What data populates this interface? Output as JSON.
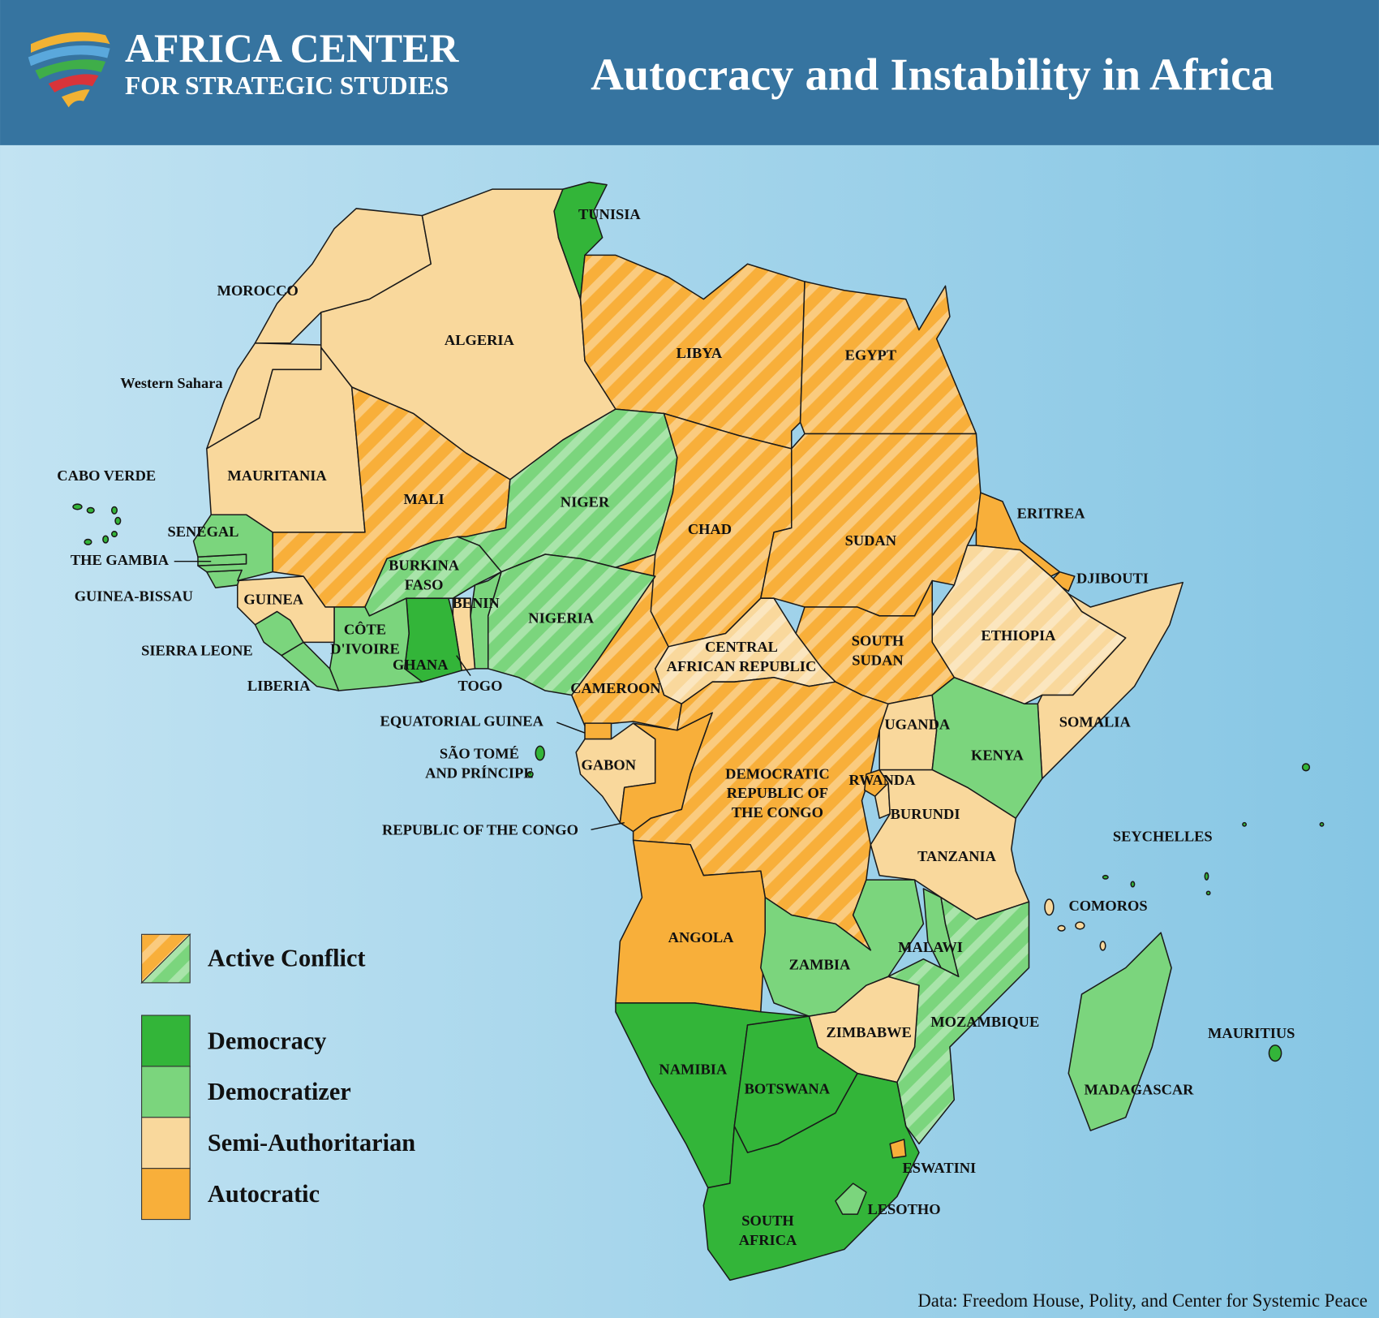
{
  "header": {
    "org_line1": "AFRICA CENTER",
    "org_line2": "FOR STRATEGIC STUDIES",
    "title": "Autocracy and Instability in Africa"
  },
  "legend": {
    "conflict_label": "Active Conflict",
    "items": [
      {
        "label": "Democracy",
        "color": "#33b539"
      },
      {
        "label": "Democratizer",
        "color": "#7bd57d"
      },
      {
        "label": "Semi-Authoritarian",
        "color": "#f9d89c"
      },
      {
        "label": "Autocratic",
        "color": "#f8af3a"
      }
    ]
  },
  "countries": [
    {
      "label": [
        "MOROCCO"
      ],
      "status": "Semi-Authoritarian",
      "conflict": false
    },
    {
      "label": [
        "ALGERIA"
      ],
      "status": "Semi-Authoritarian",
      "conflict": false
    },
    {
      "label": [
        "Western Sahara"
      ],
      "status": "Semi-Authoritarian",
      "conflict": false
    },
    {
      "label": [
        "MAURITANIA"
      ],
      "status": "Semi-Authoritarian",
      "conflict": false
    },
    {
      "label": [
        "MALI"
      ],
      "status": "Autocratic",
      "conflict": true
    },
    {
      "label": [
        "TUNISIA"
      ],
      "status": "Democracy",
      "conflict": false
    },
    {
      "label": [
        "LIBYA"
      ],
      "status": "Autocratic",
      "conflict": true
    },
    {
      "label": [
        "EGYPT"
      ],
      "status": "Autocratic",
      "conflict": true
    },
    {
      "label": [
        "NIGER"
      ],
      "status": "Democratizer",
      "conflict": true
    },
    {
      "label": [
        "CHAD"
      ],
      "status": "Autocratic",
      "conflict": true
    },
    {
      "label": [
        "SUDAN"
      ],
      "status": "Autocratic",
      "conflict": true
    },
    {
      "label": [
        "ERITREA"
      ],
      "status": "Autocratic",
      "conflict": false
    },
    {
      "label": [
        "DJIBOUTI"
      ],
      "status": "Autocratic",
      "conflict": false
    },
    {
      "label": [
        "ETHIOPIA"
      ],
      "status": "Semi-Authoritarian",
      "conflict": true
    },
    {
      "label": [
        "SOMALIA"
      ],
      "status": "Semi-Authoritarian",
      "conflict": false
    },
    {
      "label": [
        "SOUTH",
        "SUDAN"
      ],
      "status": "Autocratic",
      "conflict": true
    },
    {
      "label": [
        "CENTRAL",
        "AFRICAN REPUBLIC"
      ],
      "status": "Semi-Authoritarian",
      "conflict": true
    },
    {
      "label": [
        "CAMEROON"
      ],
      "status": "Autocratic",
      "conflict": true
    },
    {
      "label": [
        "NIGERIA"
      ],
      "status": "Democratizer",
      "conflict": true
    },
    {
      "label": [
        "BENIN"
      ],
      "status": "Democratizer",
      "conflict": false
    },
    {
      "label": [
        "TOGO"
      ],
      "status": "Semi-Authoritarian",
      "conflict": false
    },
    {
      "label": [
        "GHANA"
      ],
      "status": "Democracy",
      "conflict": false
    },
    {
      "label": [
        "BURKINA",
        "FASO"
      ],
      "status": "Democratizer",
      "conflict": true
    },
    {
      "label": [
        "CÔTE",
        "D'IVOIRE"
      ],
      "status": "Democratizer",
      "conflict": false
    },
    {
      "label": [
        "LIBERIA"
      ],
      "status": "Democratizer",
      "conflict": false
    },
    {
      "label": [
        "SIERRA LEONE"
      ],
      "status": "Democratizer",
      "conflict": false
    },
    {
      "label": [
        "GUINEA"
      ],
      "status": "Semi-Authoritarian",
      "conflict": false
    },
    {
      "label": [
        "GUINEA-BISSAU"
      ],
      "status": "Democratizer",
      "conflict": false
    },
    {
      "label": [
        "THE GAMBIA"
      ],
      "status": "Democratizer",
      "conflict": false
    },
    {
      "label": [
        "SENEGAL"
      ],
      "status": "Democratizer",
      "conflict": false
    },
    {
      "label": [
        "EQUATORIAL GUINEA"
      ],
      "status": "Autocratic",
      "conflict": false
    },
    {
      "label": [
        "GABON"
      ],
      "status": "Semi-Authoritarian",
      "conflict": false
    },
    {
      "label": [
        "REPUBLIC OF THE CONGO"
      ],
      "status": "Autocratic",
      "conflict": false
    },
    {
      "label": [
        "DEMOCRATIC",
        "REPUBLIC OF",
        "THE CONGO"
      ],
      "status": "Autocratic",
      "conflict": true
    },
    {
      "label": [
        "UGANDA"
      ],
      "status": "Semi-Authoritarian",
      "conflict": false
    },
    {
      "label": [
        "KENYA"
      ],
      "status": "Democratizer",
      "conflict": false
    },
    {
      "label": [
        "RWANDA"
      ],
      "status": "Autocratic",
      "conflict": false
    },
    {
      "label": [
        "BURUNDI"
      ],
      "status": "Semi-Authoritarian",
      "conflict": false
    },
    {
      "label": [
        "TANZANIA"
      ],
      "status": "Semi-Authoritarian",
      "conflict": false
    },
    {
      "label": [
        "ANGOLA"
      ],
      "status": "Autocratic",
      "conflict": false
    },
    {
      "label": [
        "ZAMBIA"
      ],
      "status": "Democratizer",
      "conflict": false
    },
    {
      "label": [
        "MALAWI"
      ],
      "status": "Democratizer",
      "conflict": false
    },
    {
      "label": [
        "MOZAMBIQUE"
      ],
      "status": "Democratizer",
      "conflict": true
    },
    {
      "label": [
        "ZIMBABWE"
      ],
      "status": "Semi-Authoritarian",
      "conflict": false
    },
    {
      "label": [
        "NAMIBIA"
      ],
      "status": "Democracy",
      "conflict": false
    },
    {
      "label": [
        "BOTSWANA"
      ],
      "status": "Democracy",
      "conflict": false
    },
    {
      "label": [
        "SOUTH",
        "AFRICA"
      ],
      "status": "Democracy",
      "conflict": false
    },
    {
      "label": [
        "LESOTHO"
      ],
      "status": "Democratizer",
      "conflict": false
    },
    {
      "label": [
        "ESWATINI"
      ],
      "status": "Autocratic",
      "conflict": false
    },
    {
      "label": [
        "MADAGASCAR"
      ],
      "status": "Democratizer",
      "conflict": false
    },
    {
      "label": [
        "MAURITIUS"
      ],
      "status": "Democracy",
      "conflict": false
    },
    {
      "label": [
        "CABO VERDE"
      ],
      "status": "Democracy",
      "conflict": false
    },
    {
      "label": [
        "SÃO TOMÉ",
        "AND PRÍNCIPE"
      ],
      "status": "Democracy",
      "conflict": false
    },
    {
      "label": [
        "COMOROS"
      ],
      "status": "Semi-Authoritarian",
      "conflict": false
    },
    {
      "label": [
        "SEYCHELLES"
      ],
      "status": "Democracy",
      "conflict": false
    }
  ],
  "source": "Data: Freedom House, Polity, and Center for Systemic Peace"
}
